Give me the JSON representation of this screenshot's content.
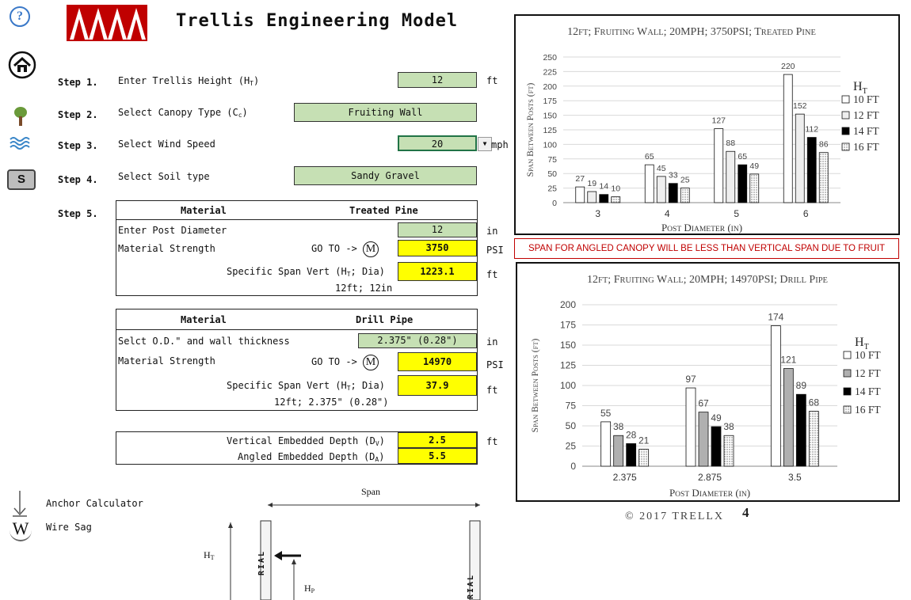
{
  "header": {
    "title": "Trellis Engineering Model"
  },
  "side_icons": {
    "help": "?",
    "soil": "S",
    "anchor_label": "Anchor Calculator",
    "wire_label": "Wire Sag",
    "wire_glyph": "W"
  },
  "steps": {
    "s1": {
      "step": "Step 1.",
      "label": "Enter Trellis Height (H",
      "sub": "T",
      "close": ")",
      "value": "12",
      "unit": "ft"
    },
    "s2": {
      "step": "Step 2.",
      "label": "Select Canopy Type (C",
      "sub": "c",
      "close": ")",
      "value": "Fruiting Wall"
    },
    "s3": {
      "step": "Step 3.",
      "label": "Select Wind Speed",
      "value": "20",
      "unit": "mph"
    },
    "s4": {
      "step": "Step 4.",
      "label": "Select Soil type",
      "value": "Sandy Gravel"
    },
    "s5": {
      "step": "Step 5."
    }
  },
  "material1": {
    "header_left": "Material",
    "header_right": "Treated Pine",
    "post_label": "Enter Post Diameter",
    "post_value": "12",
    "post_unit": "in",
    "strength_label": "Material Strength",
    "goto": "GO TO ->",
    "m": "M",
    "strength_value": "3750",
    "strength_unit": "PSI",
    "span_label": "Specific Span Vert (H",
    "span_sub": "T",
    "span_close": "; Dia)",
    "span_value": "1223.1",
    "span_unit": "ft",
    "summary": "12ft; 12in"
  },
  "material2": {
    "header_left": "Material",
    "header_right": "Drill Pipe",
    "od_label": "Selct O.D.\" and wall thickness",
    "od_value": "2.375\" (0.28\")",
    "od_unit": "in",
    "strength_label": "Material Strength",
    "goto": "GO TO ->",
    "m": "M",
    "strength_value": "14970",
    "strength_unit": "PSI",
    "span_label": "Specific Span Vert (H",
    "span_sub": "T",
    "span_close": "; Dia)",
    "span_value": "37.9",
    "span_unit": "ft",
    "summary": "12ft; 2.375\" (0.28\")"
  },
  "embed": {
    "vert_label": "Vertical Embedded Depth (D",
    "vert_sub": "V",
    "vert_value": "2.5",
    "vert_unit": "ft",
    "ang_label": "Angled Embedded Depth (D",
    "ang_sub": "A",
    "ang_value": "5.5"
  },
  "warning": "SPAN FOR ANGLED CANOPY WILL BE LESS THAN VERTICAL SPAN DUE TO FRUIT LOADS.",
  "diagram": {
    "span": "Span",
    "ht": "H",
    "ht_sub": "T",
    "hp": "H",
    "hp_sub": "P",
    "post_text": "RIAL"
  },
  "copyright": "© 2017 TRELLX",
  "colors": {
    "input_green": "#c6e0b4",
    "output_yellow": "#ffff00",
    "warning_red": "#c00000",
    "logo_red": "#c00000"
  },
  "chart_data": [
    {
      "type": "bar",
      "title": "12ft; Fruiting Wall; 20MPH; 3750PSI; Treated Pine",
      "xlabel": "Post Diameter (in)",
      "ylabel": "Span Between Posts (ft)",
      "legend_title": "H",
      "legend_title_sub": "T",
      "legend_position": "right",
      "ylim": [
        0,
        250
      ],
      "yticks": [
        0,
        25,
        50,
        75,
        100,
        125,
        150,
        175,
        200,
        225,
        250
      ],
      "categories": [
        "3",
        "4",
        "5",
        "6"
      ],
      "series": [
        {
          "name": "10 FT",
          "values": [
            27,
            65,
            127,
            220
          ],
          "fill": "#ffffff"
        },
        {
          "name": "12 FT",
          "values": [
            19,
            45,
            88,
            152
          ],
          "fill": "#eeeeee"
        },
        {
          "name": "14 FT",
          "values": [
            14,
            33,
            65,
            112
          ],
          "fill": "#000000"
        },
        {
          "name": "16 FT",
          "values": [
            10,
            25,
            49,
            86
          ],
          "fill": "#cccccc"
        }
      ]
    },
    {
      "type": "bar",
      "title": "12ft; Fruiting Wall; 20MPH; 14970PSI; Drill Pipe",
      "xlabel": "Post Diameter (in)",
      "ylabel": "Span Between Posts (ft)",
      "legend_title": "H",
      "legend_title_sub": "T",
      "legend_position": "right",
      "ylim": [
        0,
        200
      ],
      "yticks": [
        0,
        25,
        50,
        75,
        100,
        125,
        150,
        175,
        200
      ],
      "categories": [
        "2.375",
        "2.875",
        "3.5"
      ],
      "series": [
        {
          "name": "10 FT",
          "values": [
            55,
            97,
            174
          ],
          "fill": "#ffffff"
        },
        {
          "name": "12 FT",
          "values": [
            38,
            67,
            121
          ],
          "fill": "#b0b0b0"
        },
        {
          "name": "14 FT",
          "values": [
            28,
            49,
            89
          ],
          "fill": "#000000"
        },
        {
          "name": "16 FT",
          "values": [
            21,
            38,
            68
          ],
          "fill": "#ffffff"
        }
      ]
    }
  ]
}
